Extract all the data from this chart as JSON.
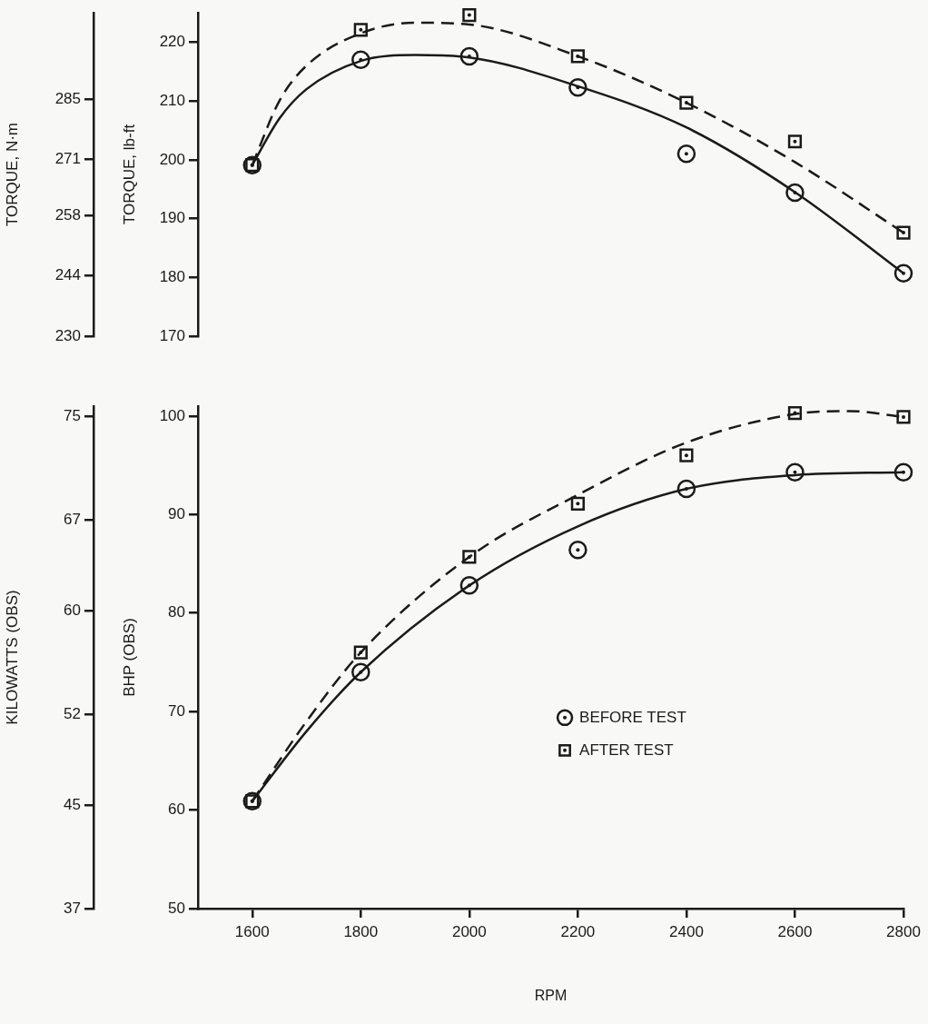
{
  "chart_data": [
    {
      "type": "scatter",
      "ylabel": "TORQUE, lb-ft",
      "y2label": "TORQUE, N·m",
      "xlim": [
        1500,
        2800
      ],
      "ylim": [
        170,
        225
      ],
      "yticks": [
        170,
        180,
        190,
        200,
        210,
        220
      ],
      "y2lim": [
        230,
        305
      ],
      "y2ticks": [
        230,
        244,
        258,
        271,
        285
      ],
      "tick_labels": "y",
      "series": [
        {
          "type": "scatter",
          "marker": "circle",
          "color": "#1a1a1a",
          "x": [
            1600,
            1800,
            2000,
            2200,
            2400,
            2600,
            2800
          ],
          "values": [
            199.1,
            217,
            217.6,
            212.3,
            201,
            194.4,
            180.7
          ]
        },
        {
          "type": "scatter",
          "marker": "square",
          "color": "#1a1a1a",
          "x": [
            1600,
            1800,
            2000,
            2200,
            2400,
            2600,
            2800
          ],
          "values": [
            199.1,
            222.1,
            224.6,
            217.6,
            209.7,
            203.1,
            187.6
          ]
        },
        {
          "type": "line",
          "line_style": "solid",
          "color": "#1a1a1a",
          "x": [
            1600,
            1650,
            1700,
            1800,
            1900,
            2000,
            2200,
            2400,
            2600,
            2800
          ],
          "values": [
            199.1,
            207,
            212,
            216.8,
            217.8,
            217.4,
            212.5,
            205.5,
            194.5,
            180.7
          ]
        },
        {
          "type": "line",
          "line_style": "dashed",
          "color": "#1a1a1a",
          "x": [
            1600,
            1650,
            1700,
            1800,
            1900,
            2000,
            2200,
            2400,
            2600,
            2800
          ],
          "values": [
            199.1,
            210,
            216,
            221.5,
            223.3,
            223,
            217.6,
            209.7,
            199.6,
            187.6
          ]
        }
      ]
    },
    {
      "type": "scatter",
      "xlabel": "RPM",
      "ylabel": "BHP (OBS)",
      "y2label": "KILOWATTS (OBS)",
      "xlim": [
        1500,
        2800
      ],
      "xticks": [
        1600,
        1800,
        2000,
        2200,
        2400,
        2600,
        2800
      ],
      "ylim": [
        50,
        101
      ],
      "yticks": [
        50,
        60,
        70,
        80,
        90,
        100
      ],
      "y2lim": [
        37,
        75.76
      ],
      "y2ticks": [
        37,
        45,
        52,
        60,
        67,
        75
      ],
      "legend": "center",
      "series": [
        {
          "type": "scatter",
          "name": "BEFORE TEST",
          "marker": "circle",
          "color": "#1a1a1a",
          "x": [
            1600,
            1800,
            2000,
            2200,
            2400,
            2600,
            2800
          ],
          "values": [
            60.9,
            74,
            82.8,
            86.4,
            92.6,
            94.3,
            94.3
          ]
        },
        {
          "type": "scatter",
          "name": "AFTER TEST",
          "marker": "square",
          "color": "#1a1a1a",
          "x": [
            1600,
            1800,
            2000,
            2200,
            2400,
            2600,
            2800
          ],
          "values": [
            60.9,
            76,
            85.7,
            91.1,
            96,
            100.3,
            99.9
          ]
        },
        {
          "type": "line",
          "line_style": "solid",
          "color": "#1a1a1a",
          "x": [
            1600,
            1700,
            1800,
            2000,
            2200,
            2400,
            2600,
            2800
          ],
          "values": [
            60.9,
            68,
            74,
            82.8,
            88.8,
            92.6,
            94,
            94.3
          ]
        },
        {
          "type": "line",
          "line_style": "dashed",
          "color": "#1a1a1a",
          "x": [
            1600,
            1700,
            1800,
            2000,
            2200,
            2400,
            2600,
            2700,
            2800
          ],
          "values": [
            60.9,
            69,
            76,
            85.7,
            92,
            97.3,
            100.2,
            100.5,
            99.9
          ]
        }
      ]
    }
  ]
}
